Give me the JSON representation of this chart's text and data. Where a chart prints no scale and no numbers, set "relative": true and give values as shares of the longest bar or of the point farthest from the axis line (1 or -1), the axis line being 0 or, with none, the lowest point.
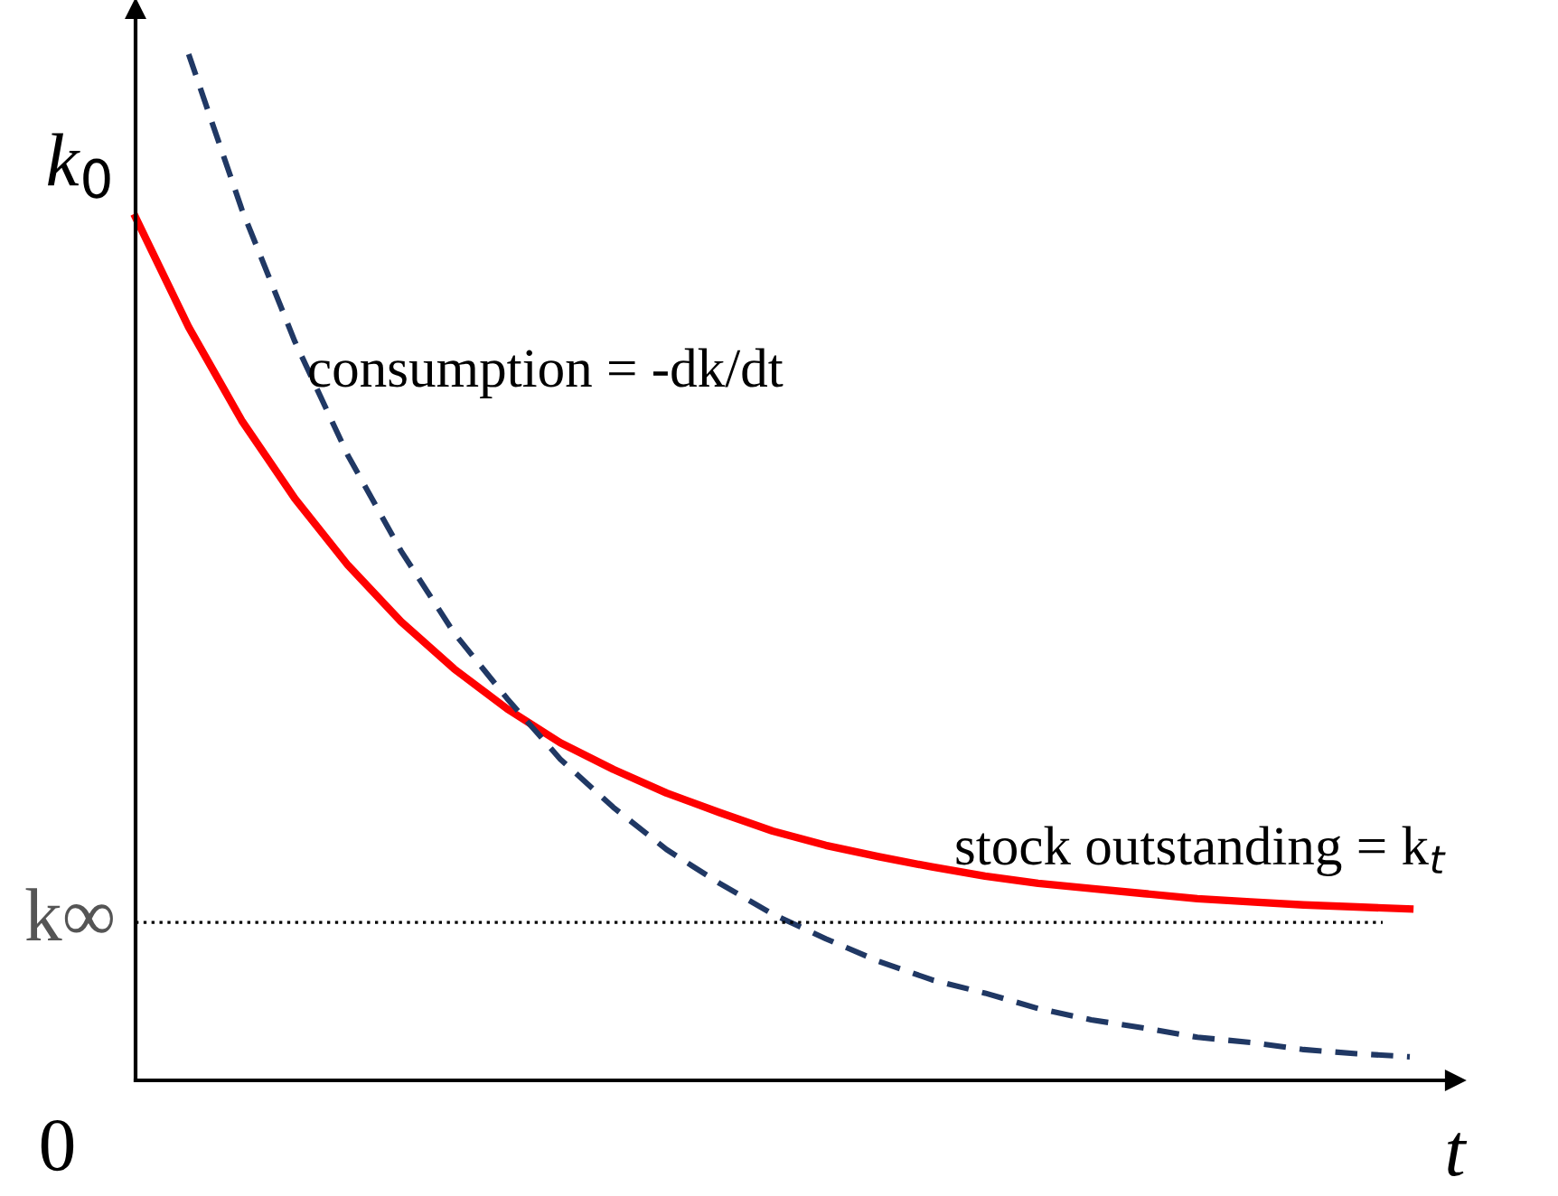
{
  "chart_data": {
    "type": "line",
    "relative": true,
    "xlabel": "t",
    "categories": [
      null,
      null,
      null,
      null,
      null,
      null,
      null,
      null,
      null,
      null,
      null,
      null,
      null,
      null,
      null,
      null,
      null,
      null,
      null,
      null,
      null,
      null,
      null,
      null,
      null
    ],
    "series": [
      {
        "color": "#ff0000",
        "line_style": "solid",
        "values": [
          0.841,
          0.734,
          0.643,
          0.567,
          0.502,
          0.447,
          0.401,
          0.362,
          0.329,
          0.303,
          0.28,
          0.261,
          0.243,
          0.229,
          0.218,
          0.208,
          0.199,
          0.192,
          0.187,
          0.182,
          0.177,
          0.174,
          0.171,
          0.169,
          0.167
        ]
      },
      {
        "color": "#203864",
        "line_style": "dashed",
        "values": [
          null,
          1.0,
          0.849,
          0.72,
          0.609,
          0.516,
          0.436,
          0.372,
          0.313,
          0.266,
          0.225,
          0.192,
          0.162,
          0.138,
          0.116,
          0.098,
          0.085,
          0.07,
          0.059,
          0.051,
          0.042,
          0.037,
          0.03,
          0.026,
          0.023
        ]
      }
    ],
    "ref_lines": [
      {
        "axis": "y",
        "value": 0.154,
        "label": "k∞",
        "color": "#000000",
        "line_style": "dotted"
      }
    ],
    "annotations": [
      "k$_{0}$",
      "0",
      "consumption = -dk/dt",
      "stock outstanding = k$_{t}$"
    ],
    "marker": "none"
  }
}
